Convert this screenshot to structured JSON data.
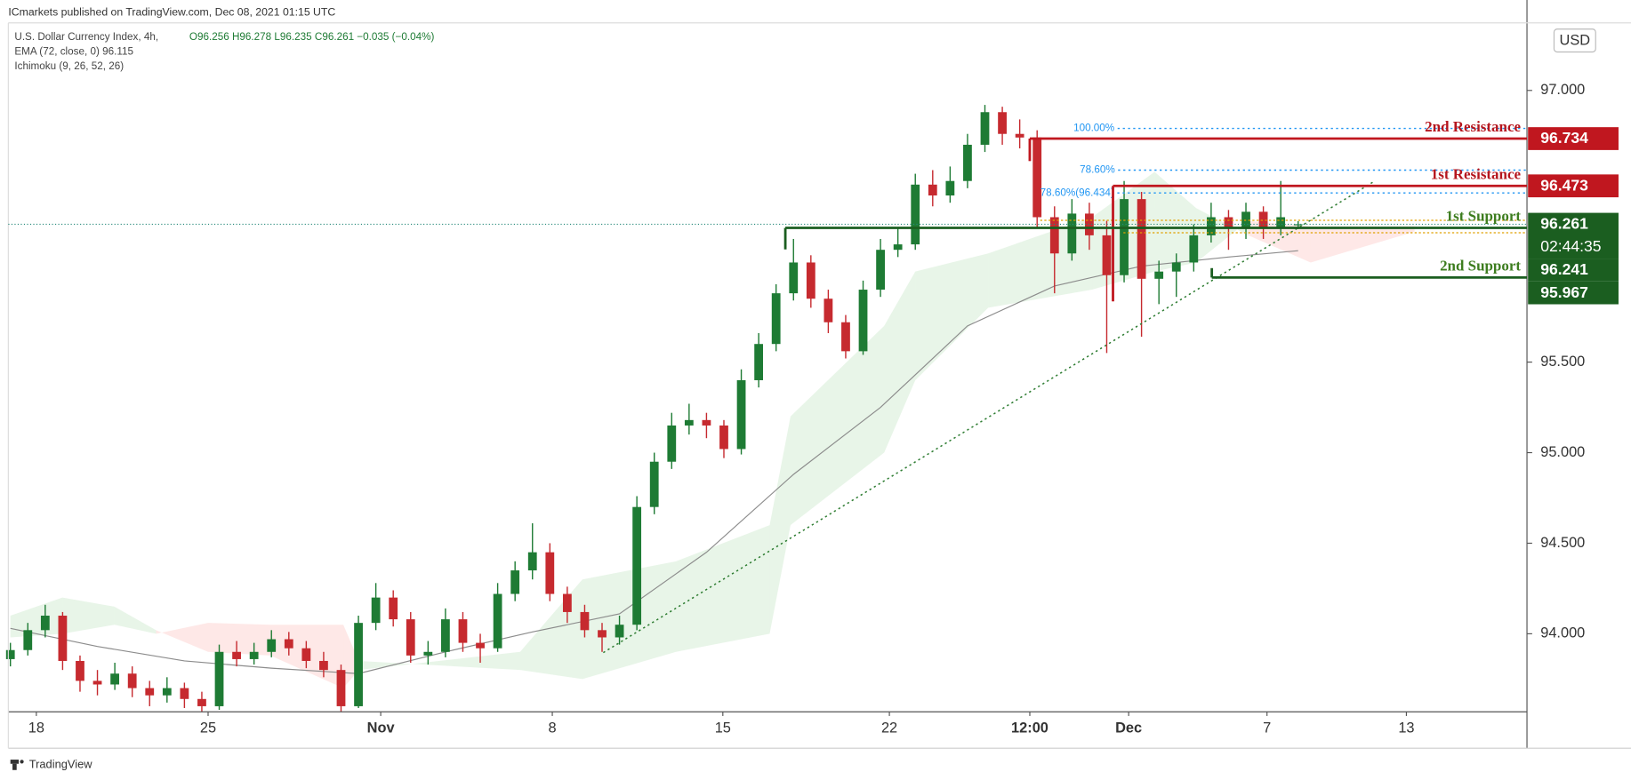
{
  "header": {
    "publisher": "ICmarkets published on TradingView.com, Dec 08, 2021 01:15 UTC",
    "brand": "TradingView"
  },
  "chart_data": {
    "type": "candlestick",
    "title": "U.S. Dollar Currency Index, 4h,",
    "ohlc_text": "O96.256 H96.278 L96.235 C96.261 −0.035 (−0.04%)",
    "indicators": [
      "EMA (72, close, 0)  96.115",
      "Ichimoku (9, 26, 52, 26)"
    ],
    "currency": "USD",
    "xlim": [
      -0.12,
      87.15
    ],
    "xticks": [
      {
        "value": 1.49,
        "label": "18"
      },
      {
        "value": 11.36,
        "label": "25"
      },
      {
        "value": 21.28,
        "label": "Nov"
      },
      {
        "value": 31.14,
        "label": "8"
      },
      {
        "value": 40.94,
        "label": "15"
      },
      {
        "value": 50.51,
        "label": "22"
      },
      {
        "value": 58.58,
        "label": "12:00"
      },
      {
        "value": 64.26,
        "label": "Dec"
      },
      {
        "value": 72.21,
        "label": "7"
      },
      {
        "value": 80.22,
        "label": "13"
      }
    ],
    "ylim": [
      93.569,
      97.396
    ],
    "yticks": [
      {
        "value": 94,
        "label": "94.000"
      },
      {
        "value": 94.5,
        "label": "94.500"
      },
      {
        "value": 95,
        "label": "95.000"
      },
      {
        "value": 95.5,
        "label": "95.500"
      },
      {
        "value": 97,
        "label": "97.000"
      }
    ],
    "up_color": "#1e7b34",
    "down_color": "#c62a2f",
    "candles": [
      [
        93.86,
        93.95,
        93.82,
        93.91
      ],
      [
        93.91,
        94.06,
        93.88,
        94.02
      ],
      [
        94.02,
        94.16,
        93.98,
        94.1
      ],
      [
        94.1,
        94.12,
        93.8,
        93.85
      ],
      [
        93.85,
        93.88,
        93.68,
        93.74
      ],
      [
        93.74,
        93.8,
        93.66,
        93.72
      ],
      [
        93.72,
        93.84,
        93.69,
        93.78
      ],
      [
        93.78,
        93.82,
        93.65,
        93.7
      ],
      [
        93.7,
        93.74,
        93.6,
        93.66
      ],
      [
        93.66,
        93.76,
        93.62,
        93.7
      ],
      [
        93.7,
        93.73,
        93.59,
        93.64
      ],
      [
        93.64,
        93.68,
        93.57,
        93.6
      ],
      [
        93.6,
        93.94,
        93.58,
        93.9
      ],
      [
        93.9,
        93.96,
        93.82,
        93.86
      ],
      [
        93.86,
        93.95,
        93.83,
        93.9
      ],
      [
        93.9,
        94.02,
        93.87,
        93.97
      ],
      [
        93.97,
        94.01,
        93.88,
        93.92
      ],
      [
        93.92,
        93.96,
        93.81,
        93.85
      ],
      [
        93.85,
        93.9,
        93.76,
        93.8
      ],
      [
        93.8,
        93.83,
        93.57,
        93.6
      ],
      [
        93.6,
        94.1,
        93.59,
        94.06
      ],
      [
        94.06,
        94.28,
        94.02,
        94.2
      ],
      [
        94.2,
        94.24,
        94.04,
        94.08
      ],
      [
        94.08,
        94.12,
        93.84,
        93.88
      ],
      [
        93.88,
        93.96,
        93.83,
        93.9
      ],
      [
        93.9,
        94.14,
        93.87,
        94.08
      ],
      [
        94.08,
        94.12,
        93.9,
        93.95
      ],
      [
        93.95,
        94.0,
        93.84,
        93.92
      ],
      [
        93.92,
        94.28,
        93.9,
        94.22
      ],
      [
        94.22,
        94.4,
        94.18,
        94.35
      ],
      [
        94.35,
        94.61,
        94.3,
        94.45
      ],
      [
        94.45,
        94.5,
        94.18,
        94.22
      ],
      [
        94.22,
        94.26,
        94.06,
        94.12
      ],
      [
        94.12,
        94.16,
        93.98,
        94.02
      ],
      [
        94.02,
        94.06,
        93.9,
        93.98
      ],
      [
        93.98,
        94.1,
        93.94,
        94.05
      ],
      [
        94.05,
        94.76,
        94.02,
        94.7
      ],
      [
        94.7,
        95.0,
        94.66,
        94.95
      ],
      [
        94.95,
        95.22,
        94.91,
        95.15
      ],
      [
        95.15,
        95.27,
        95.1,
        95.18
      ],
      [
        95.18,
        95.22,
        95.08,
        95.15
      ],
      [
        95.15,
        95.18,
        94.97,
        95.02
      ],
      [
        95.02,
        95.46,
        94.99,
        95.4
      ],
      [
        95.4,
        95.66,
        95.36,
        95.6
      ],
      [
        95.6,
        95.93,
        95.56,
        95.88
      ],
      [
        95.88,
        96.18,
        95.84,
        96.05
      ],
      [
        96.05,
        96.09,
        95.8,
        95.85
      ],
      [
        95.85,
        95.9,
        95.66,
        95.72
      ],
      [
        95.72,
        95.76,
        95.52,
        95.56
      ],
      [
        95.56,
        95.95,
        95.54,
        95.9
      ],
      [
        95.9,
        96.18,
        95.86,
        96.12
      ],
      [
        96.12,
        96.24,
        96.08,
        96.15
      ],
      [
        96.15,
        96.54,
        96.12,
        96.48
      ],
      [
        96.48,
        96.56,
        96.36,
        96.42
      ],
      [
        96.42,
        96.58,
        96.38,
        96.5
      ],
      [
        96.5,
        96.76,
        96.46,
        96.7
      ],
      [
        96.7,
        96.92,
        96.66,
        96.88
      ],
      [
        96.88,
        96.91,
        96.7,
        96.76
      ],
      [
        96.76,
        96.84,
        96.68,
        96.74
      ],
      [
        96.74,
        96.78,
        96.24,
        96.3
      ],
      [
        96.3,
        96.36,
        95.88,
        96.1
      ],
      [
        96.1,
        96.4,
        96.06,
        96.32
      ],
      [
        96.32,
        96.38,
        96.12,
        96.2
      ],
      [
        96.2,
        96.28,
        95.55,
        95.98
      ],
      [
        95.98,
        96.5,
        95.94,
        96.4
      ],
      [
        96.4,
        96.44,
        95.64,
        95.96
      ],
      [
        95.96,
        96.06,
        95.82,
        96.0
      ],
      [
        96.0,
        96.1,
        95.86,
        96.05
      ],
      [
        96.05,
        96.26,
        96.0,
        96.2
      ],
      [
        96.2,
        96.38,
        96.16,
        96.3
      ],
      [
        96.3,
        96.34,
        96.12,
        96.24
      ],
      [
        96.24,
        96.38,
        96.18,
        96.33
      ],
      [
        96.33,
        96.36,
        96.18,
        96.24
      ],
      [
        96.24,
        96.5,
        96.2,
        96.3
      ],
      [
        96.256,
        96.278,
        96.235,
        96.261
      ]
    ],
    "ema": {
      "color": "#8c8c8c",
      "x": [
        0,
        5,
        10,
        15,
        20,
        25,
        30,
        35,
        40,
        45,
        50,
        55,
        60,
        65,
        70,
        74
      ],
      "values": [
        94.03,
        93.93,
        93.85,
        93.81,
        93.78,
        93.9,
        94.01,
        94.11,
        94.45,
        94.88,
        95.25,
        95.7,
        95.92,
        96.03,
        96.08,
        96.115
      ]
    },
    "cloud": {
      "up_color": "rgba(76,175,80,0.13)",
      "down_color": "rgba(244,67,54,0.12)",
      "x": [
        0,
        2.99,
        5.98,
        8.37,
        11.36,
        14.94,
        19.13,
        20.02,
        29.29,
        32.87,
        38.25,
        43.63,
        44.83,
        50.21,
        52.0,
        56.19,
        62.16,
        65.75,
        68.14,
        71.13,
        74.72,
        80.69
      ],
      "span_a": [
        94.1,
        94.2,
        94.15,
        94.02,
        93.9,
        93.88,
        93.7,
        93.8,
        93.9,
        94.3,
        94.4,
        94.6,
        95.2,
        95.7,
        96.0,
        96.1,
        96.3,
        96.55,
        96.35,
        96.2,
        96.05,
        96.22
      ],
      "span_b": [
        93.98,
        94.0,
        94.05,
        94.0,
        94.06,
        94.05,
        94.05,
        93.85,
        93.8,
        93.75,
        93.9,
        94.0,
        94.6,
        95.0,
        95.4,
        95.8,
        95.9,
        96.0,
        96.05,
        96.28,
        96.25,
        96.25
      ]
    },
    "levels": [
      {
        "name": "2nd Resistance",
        "value": 96.734,
        "color": "#c0171f"
      },
      {
        "name": "1st Resistance",
        "value": 96.473,
        "color": "#c0171f"
      },
      {
        "name": "1st Support",
        "value": 96.241,
        "color": "#1b5e20"
      },
      {
        "name": "2nd Support",
        "value": 95.967,
        "color": "#1b5e20"
      }
    ],
    "fibs": [
      {
        "label": "100.00%",
        "value": 96.79
      },
      {
        "label": "78.60%",
        "value": 96.56
      },
      {
        "label": "78.60%(96.434)",
        "value": 96.434
      }
    ],
    "fib_color": "#2196f3",
    "last_price": {
      "value": 96.261,
      "countdown": "02:44:35",
      "color": "#1b5e20"
    }
  }
}
